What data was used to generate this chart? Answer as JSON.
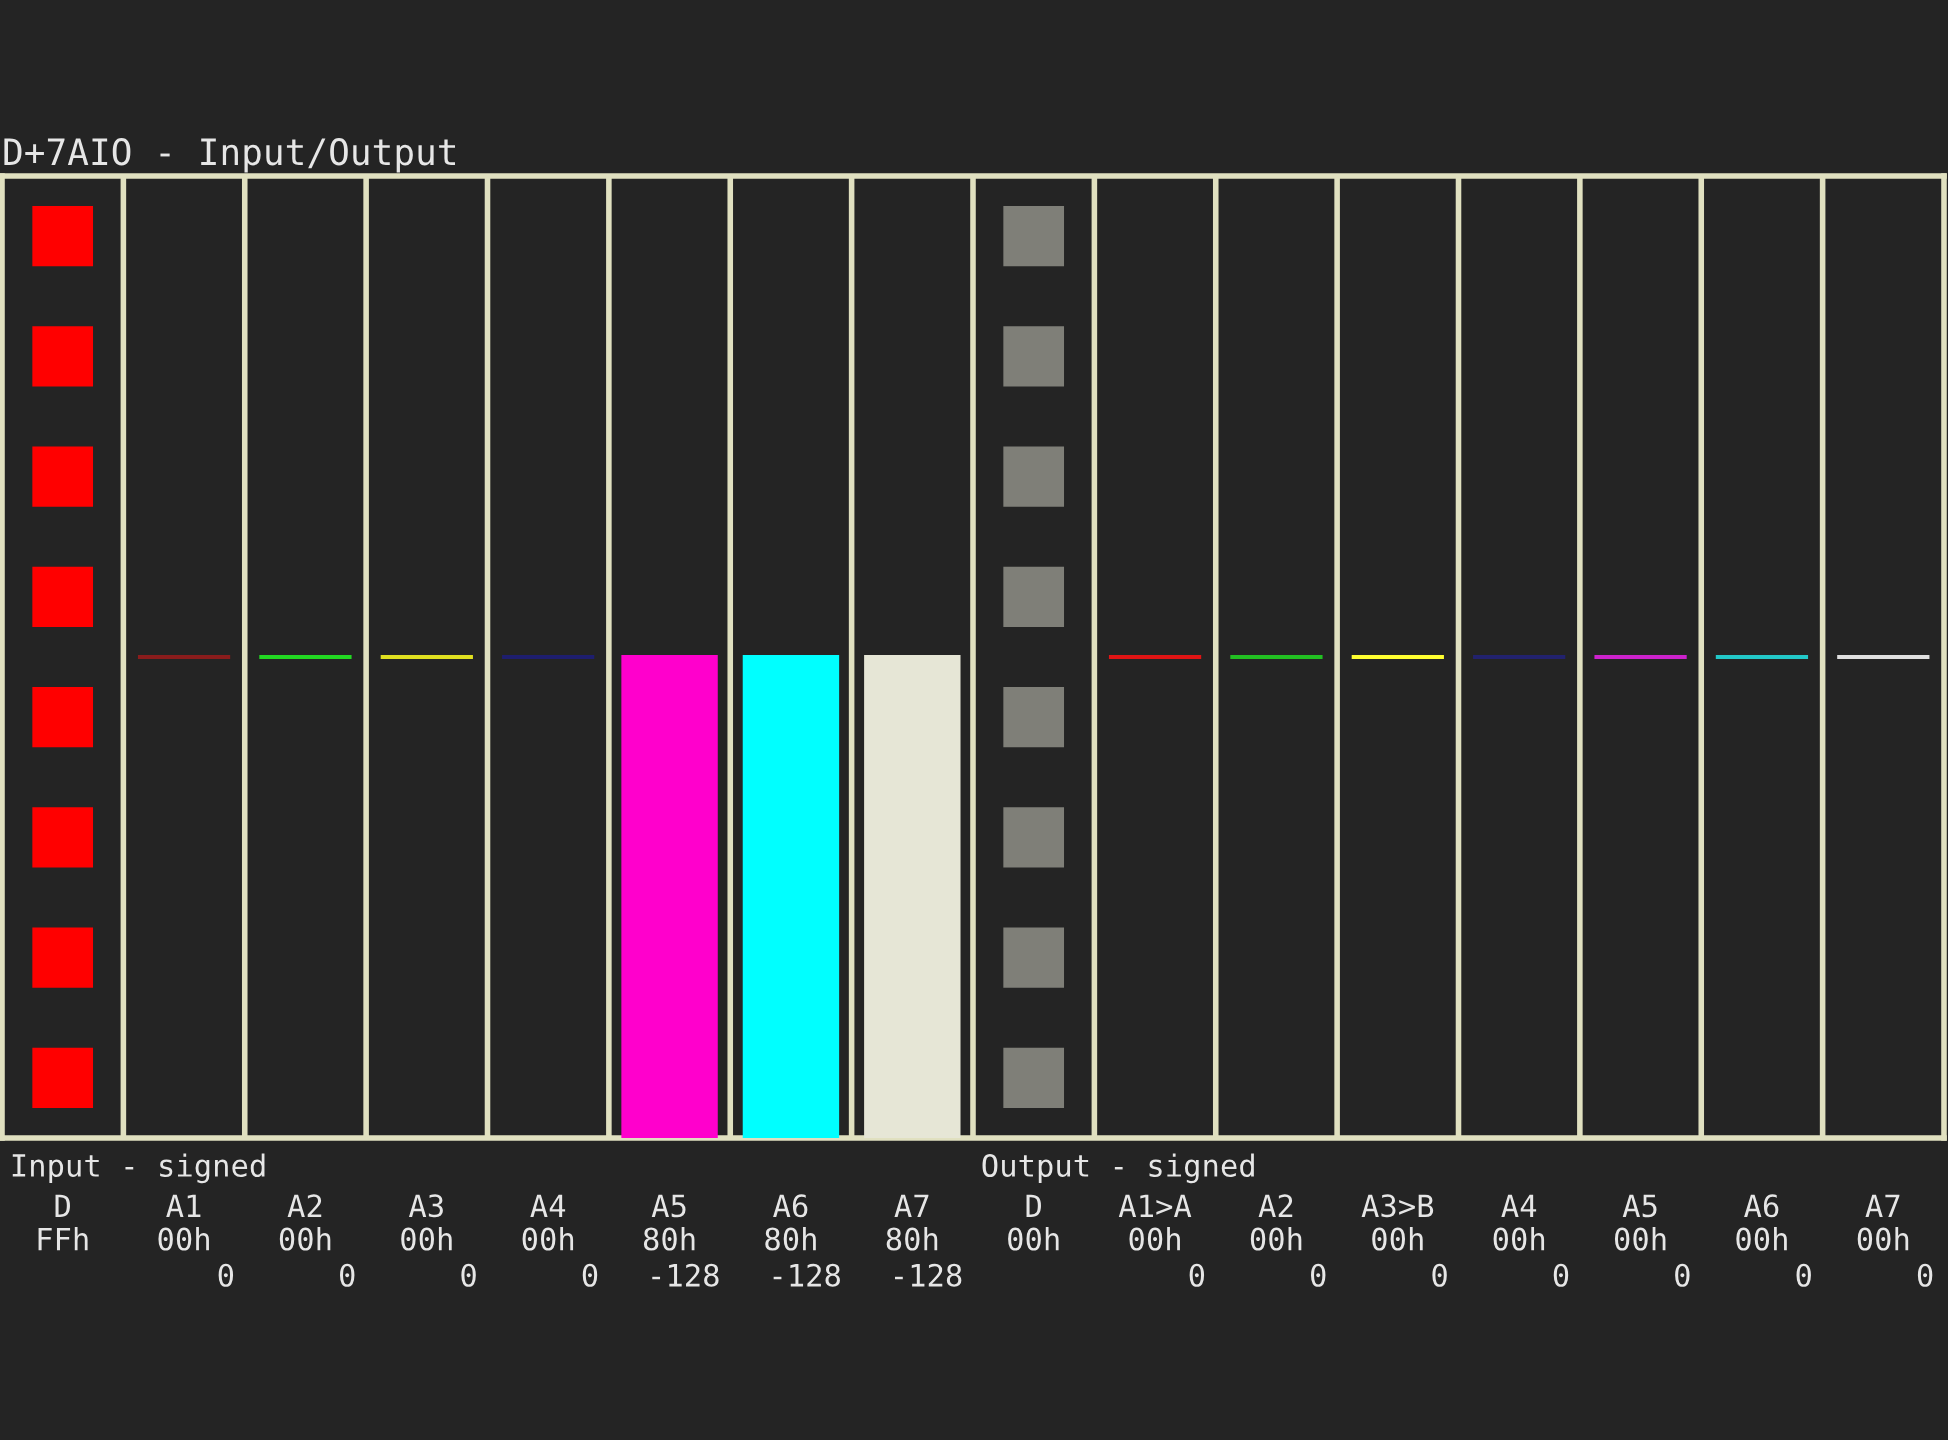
{
  "chart_data": {
    "type": "bar",
    "title": "D+7AIO - Input/Output",
    "annotations": [
      "Input - signed",
      "Output - signed"
    ],
    "categories": [
      "D\nFFh",
      "A1\n00h",
      "A2\n00h",
      "A3\n00h",
      "A4\n00h",
      "A5\n80h",
      "A6\n80h",
      "A7\n80h",
      "D\n00h",
      "A1>A\n00h",
      "A2\n00h",
      "A3>B\n00h",
      "A4\n00h",
      "A5\n00h",
      "A6\n00h",
      "A7\n00h"
    ],
    "ylim": [
      -128,
      128
    ],
    "tick_labels": "x",
    "grid": "x",
    "data_labels": true,
    "values": [
      null,
      0,
      0,
      0,
      0,
      -128,
      -128,
      -128,
      null,
      0,
      0,
      0,
      0,
      0,
      0,
      0
    ],
    "colors": [
      "#ff0000",
      "#8a1c1c",
      "#22d822",
      "#e0e020",
      "#1e1e6e",
      "#ff00cc",
      "#00ffff",
      "#e6e6d6",
      "#7f7f78",
      "#e01414",
      "#22c022",
      "#ffff30",
      "#22226e",
      "#cc22cc",
      "#22c8c8",
      "#e0e0e0"
    ]
  }
}
